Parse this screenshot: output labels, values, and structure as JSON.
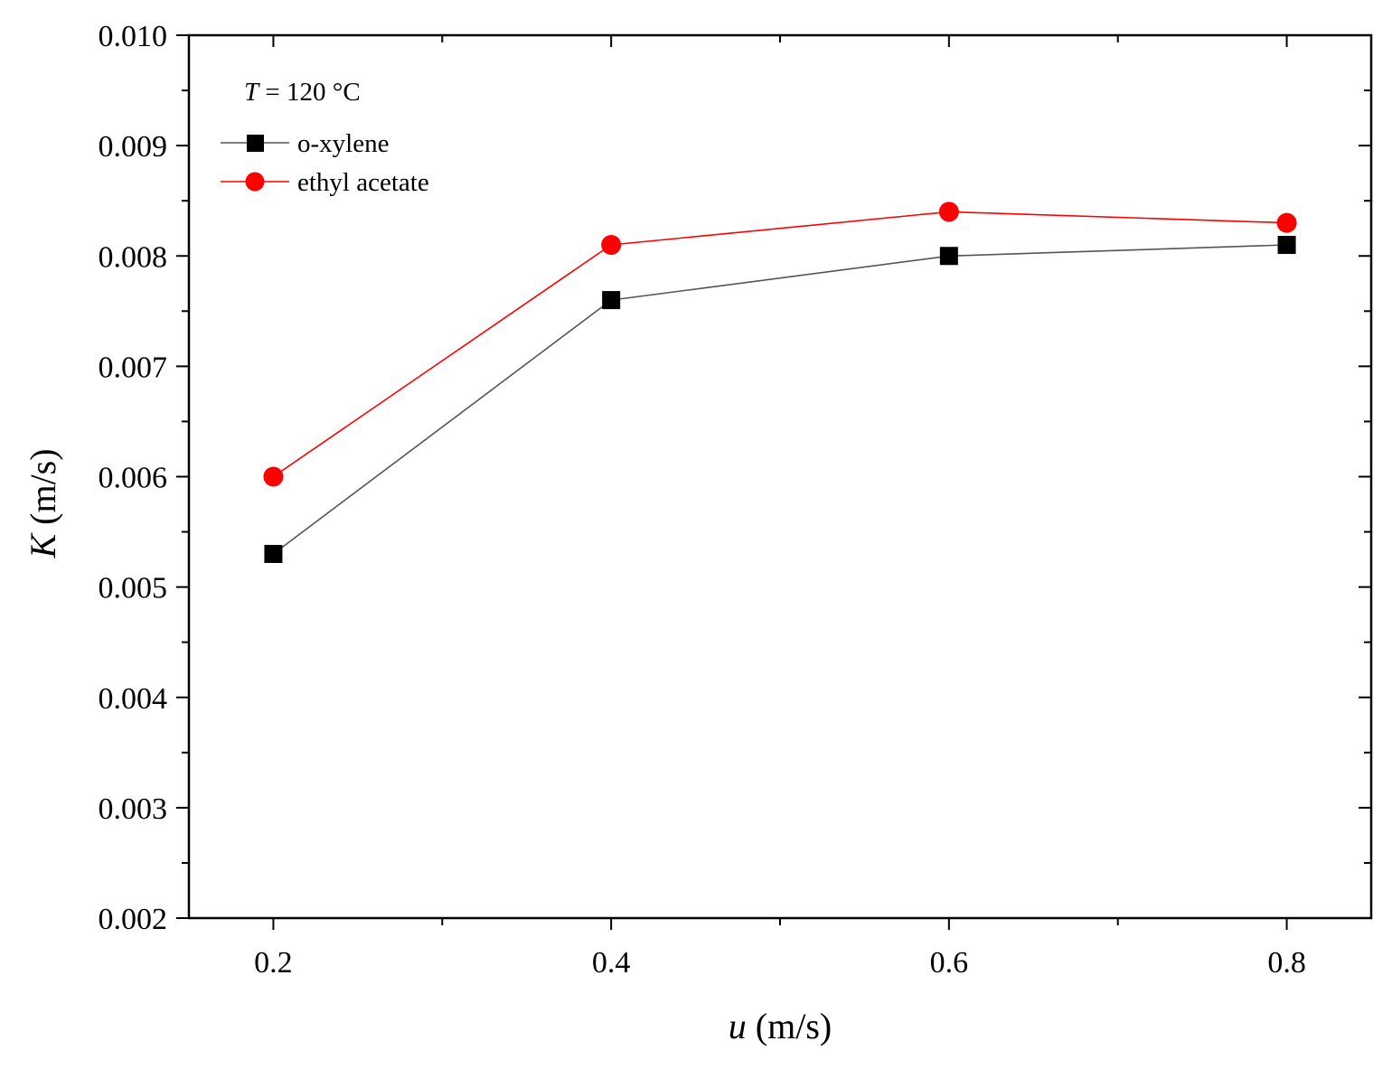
{
  "chart_data": {
    "type": "line",
    "xlabel": "u (m/s)",
    "xlabel_var": "u",
    "xlabel_unit": " (m/s)",
    "ylabel": "K (m/s)",
    "ylabel_var": "K",
    "ylabel_unit": " (m/s)",
    "annotation": "T = 120 °C",
    "annotation_var": "T",
    "annotation_rest": " = 120 °C",
    "xlim": [
      0.15,
      0.85
    ],
    "ylim": [
      0.002,
      0.01
    ],
    "x_ticks": [
      0.2,
      0.4,
      0.6,
      0.8
    ],
    "x_tick_labels": [
      "0.2",
      "0.4",
      "0.6",
      "0.8"
    ],
    "x_minor_ticks": [
      0.3,
      0.5,
      0.7
    ],
    "y_ticks": [
      0.002,
      0.003,
      0.004,
      0.005,
      0.006,
      0.007,
      0.008,
      0.009,
      0.01
    ],
    "y_tick_labels": [
      "0.002",
      "0.003",
      "0.004",
      "0.005",
      "0.006",
      "0.007",
      "0.008",
      "0.009",
      "0.010"
    ],
    "y_minor_ticks": [
      0.0025,
      0.0035,
      0.0045,
      0.0055,
      0.0065,
      0.0075,
      0.0085,
      0.0095
    ],
    "grid": false,
    "legend_position": "top-left",
    "x": [
      0.2,
      0.4,
      0.6,
      0.8
    ],
    "series": [
      {
        "name": "o-xylene",
        "marker": "square",
        "color": "#000000",
        "line_color": "#555555",
        "values": [
          0.0053,
          0.0076,
          0.008,
          0.0081
        ]
      },
      {
        "name": "ethyl acetate",
        "marker": "circle",
        "color": "#ff0000",
        "line_color": "#ff0000",
        "values": [
          0.006,
          0.0081,
          0.0084,
          0.0083
        ]
      }
    ]
  }
}
